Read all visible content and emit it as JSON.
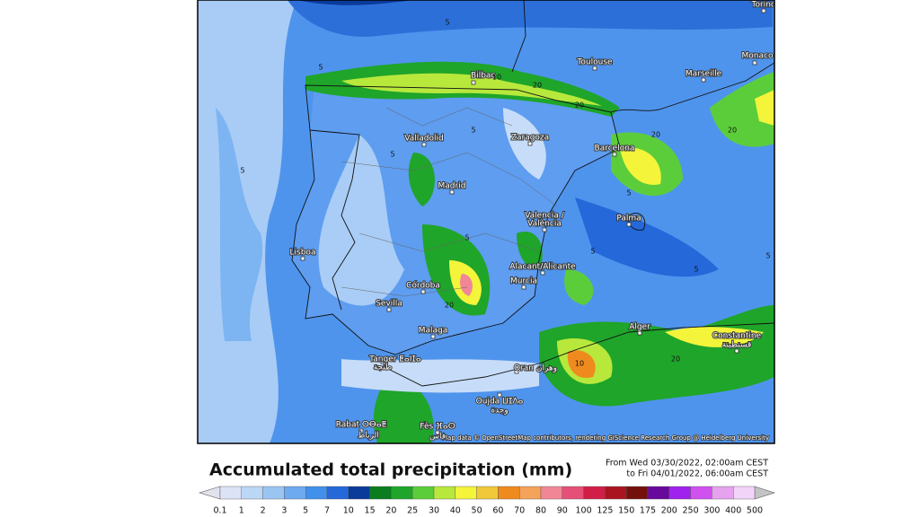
{
  "map": {
    "cities": [
      "Torino",
      "Monaco",
      "Toulouse",
      "Marseille",
      "Bilbao",
      "Valladolid",
      "Zaragoza",
      "Barcelona",
      "Madrid",
      "Valencia /",
      "València",
      "Palma",
      "Lisboa",
      "Alacant/Alicante",
      "Córdoba",
      "Murcia",
      "Sevilla",
      "Malaga",
      "Alger",
      "Constantine",
      "قسنطينة",
      "Tanger ⵟⴰⵏⵊⴰ",
      "طنجة",
      "Oran وهران",
      "Oujda ⵡⵊⴷⴰ",
      "وجدة",
      "Rabat ⵔⴱⴰⵟ",
      "الرباط",
      "Fès ⴼⴰⵙ",
      "فاس"
    ],
    "contour_labels": [
      5,
      5,
      5,
      10,
      20,
      20,
      20,
      5,
      5,
      5,
      20,
      5,
      5,
      20,
      10,
      5,
      20,
      5
    ],
    "attribution": "Map data © OpenStreetMap contributors, rendering GIScience Research Group @ Heidelberg University"
  },
  "legend": {
    "title": "Accumulated total precipitation (mm)",
    "period": [
      "From Wed 03/30/2022, 02:00am CEST",
      "to Fri 04/01/2022, 06:00am CEST"
    ],
    "labels": [
      0.1,
      1,
      2,
      3,
      5,
      7,
      10,
      15,
      20,
      25,
      30,
      40,
      50,
      60,
      70,
      80,
      90,
      100,
      125,
      150,
      175,
      200,
      250,
      300,
      400,
      500
    ],
    "colors": [
      "#dde3f7",
      "#bcd6f6",
      "#9ac5f3",
      "#6eaaf0",
      "#4190ec",
      "#2468d9",
      "#0a3a9a",
      "#0a7d1e",
      "#1fa52a",
      "#5ccd3a",
      "#b8e83c",
      "#f4f43a",
      "#f0c83a",
      "#ef8a1e",
      "#f5a25a",
      "#f08696",
      "#e65078",
      "#d21e46",
      "#aa1420",
      "#74100c",
      "#68089c",
      "#a020ee",
      "#d052ee",
      "#e6a2ee",
      "#f2d4f8"
    ],
    "under_color": "#e2e2ee",
    "over_color": "#c4c4c4"
  }
}
